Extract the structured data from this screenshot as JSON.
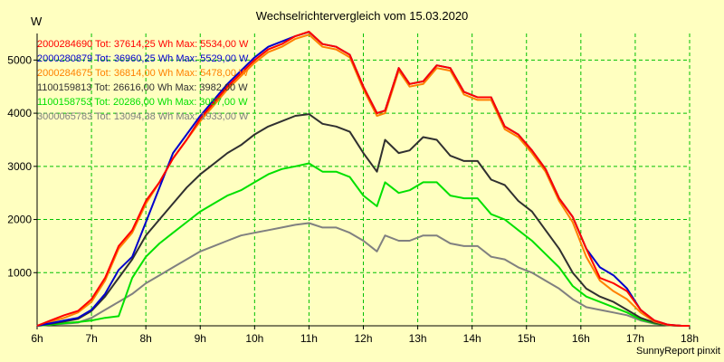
{
  "chart_data": {
    "type": "line",
    "title": "Wechselrichtervergleich vom 15.03.2020",
    "ylabel": "W",
    "credit": "SunnyReport pinxit",
    "xlim": [
      6,
      18
    ],
    "ylim": [
      0,
      5500
    ],
    "x_ticks": [
      "6h",
      "7h",
      "8h",
      "9h",
      "10h",
      "11h",
      "12h",
      "13h",
      "14h",
      "15h",
      "16h",
      "17h",
      "18h"
    ],
    "y_ticks": [
      "1000",
      "2000",
      "3000",
      "4000",
      "5000"
    ],
    "grid": true,
    "legend_placement": "top-left",
    "series": [
      {
        "name": "2000284690 Tot: 37614,25 Wh Max: 5534,00 W",
        "color": "#ff0000",
        "x": [
          6,
          6.25,
          6.5,
          6.75,
          7,
          7.25,
          7.5,
          7.75,
          8,
          8.25,
          8.5,
          8.75,
          9,
          9.25,
          9.5,
          9.75,
          10,
          10.25,
          10.5,
          10.75,
          11,
          11.25,
          11.5,
          11.75,
          12,
          12.25,
          12.4,
          12.65,
          12.85,
          13.1,
          13.35,
          13.6,
          13.85,
          14.1,
          14.35,
          14.6,
          14.85,
          15.1,
          15.35,
          15.6,
          15.85,
          16.1,
          16.35,
          16.6,
          16.85,
          17.1,
          17.35,
          17.6,
          17.85,
          18
        ],
        "y": [
          0,
          100,
          200,
          280,
          500,
          900,
          1500,
          1800,
          2350,
          2700,
          3150,
          3500,
          3900,
          4200,
          4500,
          4750,
          5000,
          5200,
          5300,
          5450,
          5534,
          5300,
          5250,
          5100,
          4500,
          4000,
          4050,
          4850,
          4550,
          4600,
          4900,
          4850,
          4400,
          4300,
          4300,
          3750,
          3600,
          3300,
          2950,
          2400,
          2050,
          1450,
          900,
          800,
          650,
          300,
          100,
          20,
          0,
          0
        ]
      },
      {
        "name": "2000280879 Tot: 36960,25 Wh Max: 5529,00 W",
        "color": "#0000cc",
        "x": [
          6,
          6.25,
          6.5,
          6.75,
          7,
          7.25,
          7.5,
          7.75,
          8,
          8.25,
          8.5,
          8.75,
          9,
          9.25,
          9.5,
          9.75,
          10,
          10.25,
          10.5,
          10.75,
          11,
          11.25,
          11.5,
          11.75,
          12,
          12.25,
          12.4,
          12.65,
          12.85,
          13.1,
          13.35,
          13.6,
          13.85,
          14.1,
          14.35,
          14.6,
          14.85,
          15.1,
          15.35,
          15.6,
          15.85,
          16.1,
          16.35,
          16.6,
          16.85,
          17.1,
          17.35,
          17.6,
          17.85,
          18
        ],
        "y": [
          0,
          50,
          100,
          150,
          300,
          600,
          1050,
          1300,
          1950,
          2600,
          3250,
          3600,
          3950,
          4250,
          4550,
          4800,
          5050,
          5250,
          5350,
          5450,
          5529,
          5300,
          5250,
          5100,
          4500,
          4000,
          4050,
          4850,
          4550,
          4600,
          4900,
          4850,
          4400,
          4300,
          4300,
          3750,
          3600,
          3300,
          2950,
          2400,
          2050,
          1450,
          1100,
          950,
          700,
          300,
          100,
          20,
          0,
          0
        ]
      },
      {
        "name": "2000284675 Tot: 36814,00 Wh Max: 5478,00 W",
        "color": "#ff8000",
        "x": [
          6,
          6.25,
          6.5,
          6.75,
          7,
          7.25,
          7.5,
          7.75,
          8,
          8.25,
          8.5,
          8.75,
          9,
          9.25,
          9.5,
          9.75,
          10,
          10.25,
          10.5,
          10.75,
          11,
          11.25,
          11.5,
          11.75,
          12,
          12.25,
          12.4,
          12.65,
          12.85,
          13.1,
          13.35,
          13.6,
          13.85,
          14.1,
          14.35,
          14.6,
          14.85,
          15.1,
          15.35,
          15.6,
          15.85,
          16.1,
          16.35,
          16.6,
          16.85,
          17.1,
          17.35,
          17.6,
          17.85,
          18
        ],
        "y": [
          0,
          80,
          150,
          250,
          450,
          850,
          1450,
          1750,
          2300,
          2700,
          3150,
          3500,
          3850,
          4150,
          4450,
          4700,
          4950,
          5150,
          5250,
          5400,
          5478,
          5250,
          5200,
          5050,
          4450,
          3950,
          4000,
          4800,
          4500,
          4550,
          4850,
          4800,
          4350,
          4250,
          4250,
          3700,
          3550,
          3250,
          2900,
          2350,
          1950,
          1300,
          850,
          650,
          500,
          250,
          80,
          15,
          0,
          0
        ]
      },
      {
        "name": "1100159813 Tot: 26616,00 Wh Max: 3982,00 W",
        "color": "#303030",
        "x": [
          6,
          6.25,
          6.5,
          6.75,
          7,
          7.25,
          7.5,
          7.75,
          8,
          8.25,
          8.5,
          8.75,
          9,
          9.25,
          9.5,
          9.75,
          10,
          10.25,
          10.5,
          10.75,
          11,
          11.25,
          11.5,
          11.75,
          12,
          12.25,
          12.4,
          12.65,
          12.85,
          13.1,
          13.35,
          13.6,
          13.85,
          14.1,
          14.35,
          14.6,
          14.85,
          15.1,
          15.35,
          15.6,
          15.85,
          16.1,
          16.35,
          16.6,
          16.85,
          17.1,
          17.35,
          17.6,
          17.85,
          18
        ],
        "y": [
          0,
          40,
          80,
          130,
          280,
          550,
          900,
          1250,
          1700,
          2000,
          2300,
          2600,
          2850,
          3050,
          3250,
          3400,
          3600,
          3750,
          3850,
          3950,
          3982,
          3800,
          3750,
          3650,
          3250,
          2900,
          3500,
          3250,
          3300,
          3550,
          3500,
          3200,
          3100,
          3100,
          2750,
          2650,
          2350,
          2150,
          1800,
          1450,
          1000,
          700,
          550,
          450,
          300,
          150,
          60,
          10,
          0,
          0
        ]
      },
      {
        "name": "1100158753 Tot: 20286,00 Wh Max: 3057,00 W",
        "color": "#00e000",
        "x": [
          6,
          6.25,
          6.5,
          6.75,
          7,
          7.25,
          7.5,
          7.75,
          8,
          8.25,
          8.5,
          8.75,
          9,
          9.25,
          9.5,
          9.75,
          10,
          10.25,
          10.5,
          10.75,
          11,
          11.25,
          11.5,
          11.75,
          12,
          12.25,
          12.4,
          12.65,
          12.85,
          13.1,
          13.35,
          13.6,
          13.85,
          14.1,
          14.35,
          14.6,
          14.85,
          15.1,
          15.35,
          15.6,
          15.85,
          16.1,
          16.35,
          16.6,
          16.85,
          17.1,
          17.35,
          17.6,
          17.85,
          18
        ],
        "y": [
          0,
          20,
          50,
          70,
          100,
          150,
          180,
          900,
          1300,
          1550,
          1750,
          1950,
          2150,
          2300,
          2450,
          2550,
          2700,
          2850,
          2950,
          3000,
          3057,
          2900,
          2900,
          2800,
          2450,
          2250,
          2700,
          2500,
          2550,
          2700,
          2700,
          2450,
          2400,
          2400,
          2100,
          2000,
          1800,
          1600,
          1350,
          1100,
          750,
          550,
          450,
          350,
          250,
          120,
          50,
          10,
          0,
          0
        ]
      },
      {
        "name": "3000065783 Tot: 13094,38 Wh Max: 1933,00 W",
        "color": "#808080",
        "x": [
          6,
          6.25,
          6.5,
          6.75,
          7,
          7.25,
          7.5,
          7.75,
          8,
          8.25,
          8.5,
          8.75,
          9,
          9.25,
          9.5,
          9.75,
          10,
          10.25,
          10.5,
          10.75,
          11,
          11.25,
          11.5,
          11.75,
          12,
          12.25,
          12.4,
          12.65,
          12.85,
          13.1,
          13.35,
          13.6,
          13.85,
          14.1,
          14.35,
          14.6,
          14.85,
          15.1,
          15.35,
          15.6,
          15.85,
          16.1,
          16.35,
          16.6,
          16.85,
          17.1,
          17.35,
          17.6,
          17.85,
          18
        ],
        "y": [
          0,
          20,
          40,
          60,
          150,
          300,
          450,
          600,
          800,
          950,
          1100,
          1250,
          1400,
          1500,
          1600,
          1700,
          1750,
          1800,
          1850,
          1900,
          1933,
          1850,
          1850,
          1750,
          1600,
          1400,
          1700,
          1600,
          1600,
          1700,
          1700,
          1550,
          1500,
          1500,
          1300,
          1250,
          1100,
          1000,
          850,
          700,
          500,
          350,
          300,
          250,
          200,
          100,
          40,
          10,
          0,
          0
        ]
      }
    ]
  }
}
